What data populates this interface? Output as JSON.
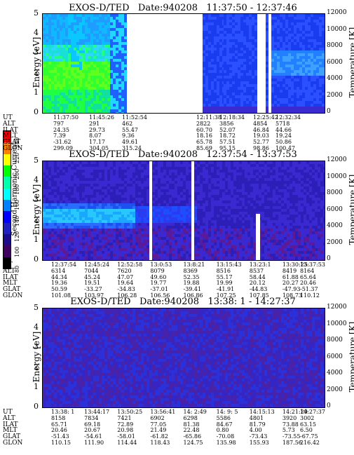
{
  "colorbar": {
    "title": "Second Harmonic Current",
    "ticks": [
      "240",
      "220",
      "200",
      "180",
      "160",
      "140",
      "120",
      "100",
      "80"
    ],
    "colors": [
      "#ff0000",
      "#ff7f00",
      "#ffff00",
      "#00ff00",
      "#00ffaa",
      "#00ffff",
      "#0080ff",
      "#0000ff",
      "#2020c0",
      "#1c0c8c",
      "#400060",
      "#000000"
    ]
  },
  "chart_data": [
    {
      "type": "heatmap",
      "title": "EXOS-D/TED   Date:940208   11:37:50 - 12:37:46",
      "ylabel": "Energy [eV]",
      "y2label": "Temperature [K]",
      "ylim": [
        0,
        5
      ],
      "y2lim": [
        0,
        12000
      ],
      "yticks": [
        "5",
        "4",
        "3",
        "2",
        "1",
        "0"
      ],
      "y2ticks": [
        "12000",
        "10000",
        "8000",
        "6000",
        "4000",
        "2000",
        "0"
      ],
      "rows": [
        "UT",
        "ALT",
        "ILAT",
        "MLT",
        "GLAT",
        "GLON"
      ],
      "columns": [
        {
          "UT": "11:37:50",
          "ALT": "797",
          "ILAT": "24.35",
          "MLT": "7.39",
          "GLAT": "-31.62",
          "GLON": "299.09"
        },
        {
          "UT": "11:45:26",
          "ALT": "291",
          "ILAT": "29.73",
          "MLT": "8.07",
          "GLAT": "17.17",
          "GLON": "304.05"
        },
        {
          "UT": "11:52:54",
          "ALT": "462",
          "ILAT": "55.47",
          "MLT": "9.36",
          "GLAT": "49.61",
          "GLON": "315.24"
        },
        {
          "UT": "12:11:38",
          "ALT": "2822",
          "ILAT": "60.70",
          "MLT": "18.16",
          "GLAT": "65.78",
          "GLON": "85.69"
        },
        {
          "UT": "12:18:34",
          "ALT": "3856",
          "ILAT": "52.07",
          "MLT": "18.72",
          "GLAT": "57.51",
          "GLON": "95.15"
        },
        {
          "UT": "12:25:42",
          "ALT": "4854",
          "ILAT": "46.84",
          "MLT": "19.03",
          "GLAT": "52.77",
          "GLON": "98.86"
        },
        {
          "UT": "12:32:34",
          "ALT": "5718",
          "ILAT": "44.66",
          "MLT": "19.24",
          "GLAT": "50.86",
          "GLON": "100.47"
        }
      ]
    },
    {
      "type": "heatmap",
      "title": "EXOS-D/TED   Date:940208   12:37:54 - 13:37:53",
      "ylabel": "Energy [eV]",
      "y2label": "Temperature [K]",
      "ylim": [
        0,
        5
      ],
      "y2lim": [
        0,
        12000
      ],
      "yticks": [
        "5",
        "4",
        "3",
        "2",
        "1",
        "0"
      ],
      "y2ticks": [
        "12000",
        "10000",
        "8000",
        "6000",
        "4000",
        "2000",
        "0"
      ],
      "rows": [
        "UT",
        "ALT",
        "ILAT",
        "MLT",
        "GLAT",
        "GLON"
      ],
      "columns": [
        {
          "UT": "12:37:54",
          "ALT": "6314",
          "ILAT": "44.34",
          "MLT": "19.36",
          "GLAT": "50.59",
          "GLON": "101.08"
        },
        {
          "UT": "12:45:24",
          "ALT": "7044",
          "ILAT": "45.24",
          "MLT": "19.51",
          "GLAT": "-33.27",
          "GLON": "103.97"
        },
        {
          "UT": "12:52:58",
          "ALT": "7620",
          "ILAT": "47.07",
          "MLT": "19.64",
          "GLAT": "-34.83",
          "GLON": "106.28"
        },
        {
          "UT": "13:0:53",
          "ALT": "8079",
          "ILAT": "49.60",
          "MLT": "19.77",
          "GLAT": "-37.01",
          "GLON": "106.56"
        },
        {
          "UT": "13:8:21",
          "ALT": "8369",
          "ILAT": "52.35",
          "MLT": "19.88",
          "GLAT": "-39.41",
          "GLON": "106.86"
        },
        {
          "UT": "13:15:43",
          "ALT": "8516",
          "ILAT": "55.17",
          "MLT": "19.99",
          "GLAT": "-41.91",
          "GLON": "107.25"
        },
        {
          "UT": "13:23:1",
          "ALT": "8537",
          "ILAT": "58.44",
          "MLT": "20.12",
          "GLAT": "-44.83",
          "GLON": "107.85"
        },
        {
          "UT": "13:30:25",
          "ALT": "8419",
          "ILAT": "61.88",
          "MLT": "20.27",
          "GLAT": "-47.93",
          "GLON": "108.73"
        },
        {
          "UT": "13:37:53",
          "ALT": "8164",
          "ILAT": "65.64",
          "MLT": "20.46",
          "GLAT": "-51.37",
          "GLON": "110.12"
        }
      ]
    },
    {
      "type": "heatmap",
      "title": "EXOS-D/TED   Date:940208   13:38: 1 - 14:27:37",
      "ylabel": "Energy [eV]",
      "y2label": "Temperature [K]",
      "ylim": [
        0,
        5
      ],
      "y2lim": [
        0,
        12000
      ],
      "yticks": [
        "5",
        "4",
        "3",
        "2",
        "1",
        "0"
      ],
      "y2ticks": [
        "12000",
        "10000",
        "8000",
        "6000",
        "4000",
        "2000",
        "0"
      ],
      "rows": [
        "UT",
        "ALT",
        "ILAT",
        "MLT",
        "GLAT",
        "GLON"
      ],
      "columns": [
        {
          "UT": "13:38: 1",
          "ALT": "8158",
          "ILAT": "65.71",
          "MLT": "20.46",
          "GLAT": "-51.43",
          "GLON": "110.15"
        },
        {
          "UT": "13:44:17",
          "ALT": "7834",
          "ILAT": "69.18",
          "MLT": "20.67",
          "GLAT": "-54.61",
          "GLON": "111.90"
        },
        {
          "UT": "13:50:25",
          "ALT": "7421",
          "ILAT": "72.89",
          "MLT": "20.98",
          "GLAT": "-58.01",
          "GLON": "114.44"
        },
        {
          "UT": "13:56:41",
          "ALT": "6902",
          "ILAT": "77.05",
          "MLT": "21.49",
          "GLAT": "-61.82",
          "GLON": "118.43"
        },
        {
          "UT": "14: 2:49",
          "ALT": "6298",
          "ILAT": "81.38",
          "MLT": "22.48",
          "GLAT": "-65.86",
          "GLON": "124.75"
        },
        {
          "UT": "14: 9: 5",
          "ALT": "5586",
          "ILAT": "84.67",
          "MLT": "0.80",
          "GLAT": "-70.08",
          "GLON": "135.98"
        },
        {
          "UT": "14:15:13",
          "ALT": "4801",
          "ILAT": "81.79",
          "MLT": "4.00",
          "GLAT": "-73.43",
          "GLON": "155.93"
        },
        {
          "UT": "14:21:29",
          "ALT": "3920",
          "ILAT": "73.88",
          "MLT": "5.73",
          "GLAT": "-73.55",
          "GLON": "187.56"
        },
        {
          "UT": "14:27:37",
          "ALT": "3002",
          "ILAT": "63.15",
          "MLT": "6.50",
          "GLAT": "-67.75",
          "GLON": "216.42"
        }
      ]
    }
  ]
}
